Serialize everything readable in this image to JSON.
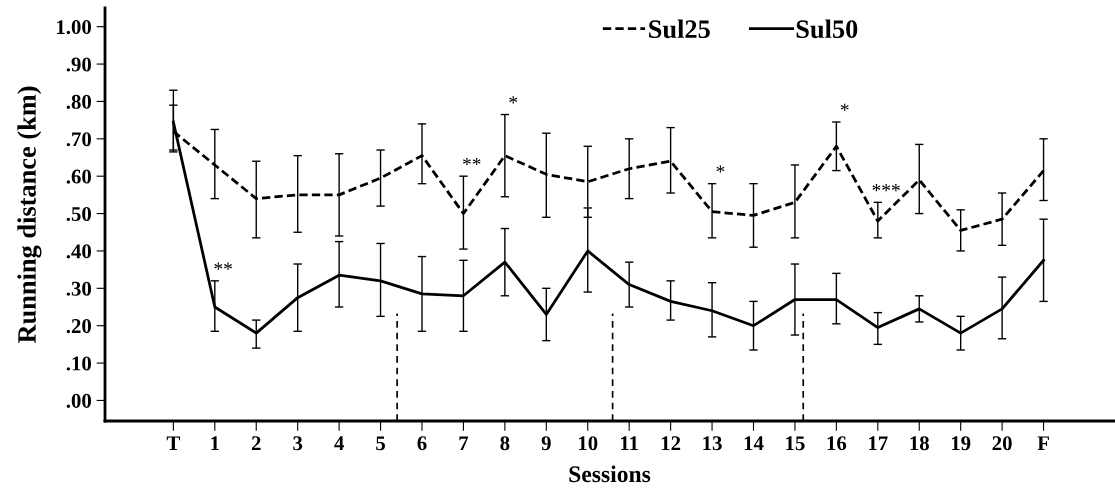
{
  "chart_data": {
    "type": "line",
    "xlabel": "Sessions",
    "ylabel": "Running distance (km)",
    "categories": [
      "T",
      "1",
      "2",
      "3",
      "4",
      "5",
      "6",
      "7",
      "8",
      "9",
      "10",
      "11",
      "12",
      "13",
      "14",
      "15",
      "16",
      "17",
      "18",
      "19",
      "20",
      "F"
    ],
    "series": [
      {
        "name": "Sul25",
        "color": "#000000",
        "line_style": "dashed",
        "values": [
          0.72,
          0.63,
          0.54,
          0.55,
          0.55,
          0.595,
          0.655,
          0.5,
          0.655,
          0.605,
          0.585,
          0.62,
          0.64,
          0.505,
          0.495,
          0.53,
          0.68,
          0.48,
          0.59,
          0.455,
          0.485,
          0.615
        ],
        "errors": [
          [
            0.665,
            0.83
          ],
          [
            0.54,
            0.725
          ],
          [
            0.435,
            0.64
          ],
          [
            0.45,
            0.655
          ],
          [
            0.44,
            0.66
          ],
          [
            0.52,
            0.67
          ],
          [
            0.58,
            0.74
          ],
          [
            0.405,
            0.6
          ],
          [
            0.545,
            0.765
          ],
          [
            0.49,
            0.715
          ],
          [
            0.49,
            0.68
          ],
          [
            0.54,
            0.7
          ],
          [
            0.555,
            0.73
          ],
          [
            0.435,
            0.58
          ],
          [
            0.41,
            0.58
          ],
          [
            0.435,
            0.63
          ],
          [
            0.615,
            0.745
          ],
          [
            0.435,
            0.53
          ],
          [
            0.5,
            0.685
          ],
          [
            0.4,
            0.51
          ],
          [
            0.415,
            0.555
          ],
          [
            0.535,
            0.7
          ]
        ]
      },
      {
        "name": "Sul50",
        "color": "#000000",
        "line_style": "solid",
        "values": [
          0.745,
          0.25,
          0.18,
          0.275,
          0.335,
          0.32,
          0.285,
          0.28,
          0.37,
          0.23,
          0.4,
          0.31,
          0.265,
          0.24,
          0.2,
          0.27,
          0.27,
          0.195,
          0.245,
          0.18,
          0.245,
          0.375
        ],
        "errors": [
          [
            0.67,
            0.79
          ],
          [
            0.185,
            0.32
          ],
          [
            0.14,
            0.215
          ],
          [
            0.185,
            0.365
          ],
          [
            0.25,
            0.425
          ],
          [
            0.225,
            0.42
          ],
          [
            0.185,
            0.385
          ],
          [
            0.185,
            0.375
          ],
          [
            0.28,
            0.46
          ],
          [
            0.16,
            0.3
          ],
          [
            0.29,
            0.515
          ],
          [
            0.25,
            0.37
          ],
          [
            0.215,
            0.32
          ],
          [
            0.17,
            0.315
          ],
          [
            0.135,
            0.265
          ],
          [
            0.175,
            0.365
          ],
          [
            0.205,
            0.34
          ],
          [
            0.15,
            0.235
          ],
          [
            0.21,
            0.28
          ],
          [
            0.135,
            0.225
          ],
          [
            0.165,
            0.33
          ],
          [
            0.265,
            0.485
          ]
        ]
      }
    ],
    "ylim": [
      -0.055,
      1.05
    ],
    "yticks": [
      {
        "value": 0,
        "label": ".00"
      },
      {
        "value": 0.1,
        "label": ".10"
      },
      {
        "value": 0.2,
        "label": ".20"
      },
      {
        "value": 0.3,
        "label": ".30"
      },
      {
        "value": 0.4,
        "label": ".40"
      },
      {
        "value": 0.5,
        "label": ".50"
      },
      {
        "value": 0.6,
        "label": ".60"
      },
      {
        "value": 0.7,
        "label": ".70"
      },
      {
        "value": 0.8,
        "label": ".80"
      },
      {
        "value": 0.9,
        "label": ".90"
      },
      {
        "value": 1.0,
        "label": "1.00"
      }
    ],
    "annotations": [
      {
        "text": "**",
        "x": "1",
        "y": 0.32
      },
      {
        "text": "**",
        "x": "7",
        "y": 0.6
      },
      {
        "text": "*",
        "x": "8",
        "y": 0.765
      },
      {
        "text": "*",
        "x": "13",
        "y": 0.58
      },
      {
        "text": "*",
        "x": "16",
        "y": 0.745
      },
      {
        "text": "***",
        "x": "17",
        "y": 0.53
      }
    ],
    "grid": false,
    "legend": "top",
    "marker": "none"
  }
}
